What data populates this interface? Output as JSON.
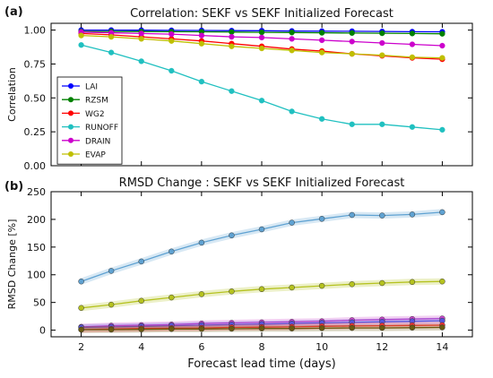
{
  "chart_data": [
    {
      "panel_label": "(a)",
      "type": "line",
      "title": "Correlation: SEKF vs SEKF Initialized Forecast",
      "xlabel": "",
      "ylabel": "Correlation",
      "xlim": [
        1,
        15
      ],
      "ylim": [
        0.0,
        1.05
      ],
      "x": [
        2,
        3,
        4,
        5,
        6,
        7,
        8,
        9,
        10,
        11,
        12,
        13,
        14
      ],
      "x_ticks": [
        2,
        4,
        6,
        8,
        10,
        12,
        14
      ],
      "y_ticks": [
        "0.00",
        "0.25",
        "0.50",
        "0.75",
        "1.00"
      ],
      "y_tick_values": [
        0.0,
        0.25,
        0.5,
        0.75,
        1.0
      ],
      "grid": false,
      "legend": "middle-left",
      "series": [
        {
          "name": "LAI",
          "color": "#0000ff",
          "values": [
            1.0,
            1.0,
            0.999,
            0.998,
            0.997,
            0.996,
            0.995,
            0.993,
            0.992,
            0.991,
            0.99,
            0.988,
            0.987
          ]
        },
        {
          "name": "RZSM",
          "color": "#008000",
          "values": [
            0.99,
            0.99,
            0.989,
            0.988,
            0.987,
            0.985,
            0.983,
            0.982,
            0.98,
            0.978,
            0.977,
            0.975,
            0.973
          ]
        },
        {
          "name": "WG2",
          "color": "#ff0000",
          "values": [
            0.975,
            0.965,
            0.95,
            0.935,
            0.92,
            0.9,
            0.88,
            0.86,
            0.845,
            0.825,
            0.81,
            0.795,
            0.785
          ]
        },
        {
          "name": "RUNOFF",
          "color": "#20c0c0",
          "values": [
            0.89,
            0.835,
            0.77,
            0.7,
            0.62,
            0.55,
            0.48,
            0.4,
            0.345,
            0.305,
            0.305,
            0.285,
            0.265
          ]
        },
        {
          "name": "DRAIN",
          "color": "#cc00cc",
          "values": [
            0.985,
            0.98,
            0.975,
            0.97,
            0.96,
            0.95,
            0.945,
            0.935,
            0.925,
            0.915,
            0.905,
            0.895,
            0.885
          ]
        },
        {
          "name": "EVAP",
          "color": "#bfbf00",
          "values": [
            0.96,
            0.95,
            0.935,
            0.92,
            0.9,
            0.88,
            0.865,
            0.85,
            0.835,
            0.825,
            0.815,
            0.8,
            0.795
          ]
        }
      ]
    },
    {
      "panel_label": "(b)",
      "type": "line",
      "title": "RMSD Change : SEKF vs SEKF Initialized Forecast",
      "xlabel": "Forecast lead time (days)",
      "ylabel": "RMSD Change [%]",
      "xlim": [
        1,
        15
      ],
      "ylim": [
        -12,
        250
      ],
      "x": [
        2,
        3,
        4,
        5,
        6,
        7,
        8,
        9,
        10,
        11,
        12,
        13,
        14
      ],
      "x_ticks": [
        2,
        4,
        6,
        8,
        10,
        12,
        14
      ],
      "y_ticks": [
        "0",
        "50",
        "100",
        "150",
        "200",
        "250"
      ],
      "y_tick_values": [
        0,
        50,
        100,
        150,
        200,
        250
      ],
      "grid": false,
      "series": [
        {
          "color": "#5fa2d2",
          "values": [
            88,
            107,
            124,
            142,
            158,
            171,
            182,
            194,
            201,
            208,
            207,
            209,
            213
          ]
        },
        {
          "color": "#b5c21f",
          "values": [
            40,
            46,
            53,
            59,
            65,
            70,
            74,
            77,
            80,
            83,
            85,
            87,
            88
          ]
        },
        {
          "color": "#cc44cc",
          "values": [
            6,
            8,
            9,
            10,
            12,
            13,
            14,
            15,
            16,
            18,
            19,
            20,
            21
          ]
        },
        {
          "color": "#5555dd",
          "values": [
            5,
            6,
            7,
            8,
            9,
            10,
            11,
            12,
            13,
            14,
            15,
            16,
            17
          ]
        },
        {
          "color": "#ff3333",
          "values": [
            1,
            2,
            3,
            3.5,
            4,
            5,
            5.5,
            6,
            7,
            7.5,
            8,
            8.5,
            9
          ]
        },
        {
          "color": "#6b5a10",
          "values": [
            1,
            1,
            1.5,
            2,
            2,
            2.5,
            3,
            3,
            3.5,
            4,
            4,
            4.5,
            5
          ]
        }
      ]
    }
  ]
}
